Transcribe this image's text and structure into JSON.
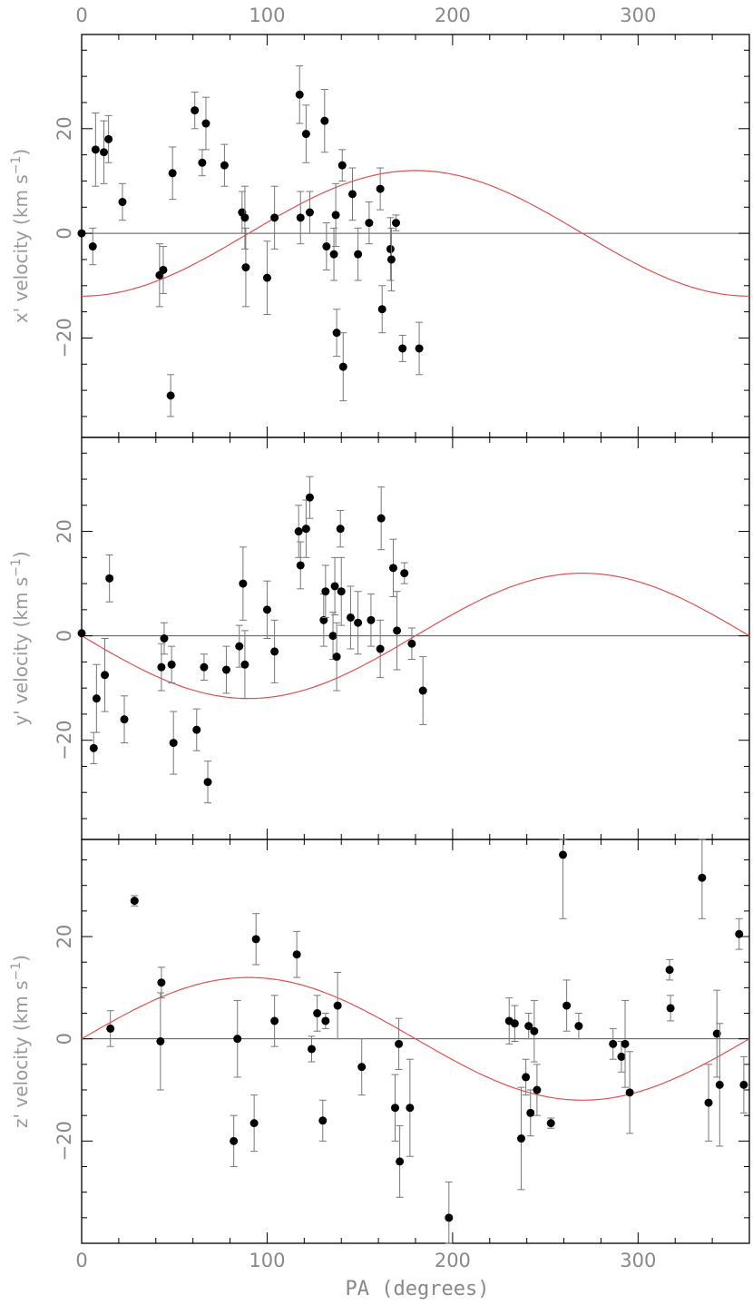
{
  "chart_data": {
    "type": "scatter",
    "xlabel": "PA (degrees)",
    "xlim": [
      0,
      360
    ],
    "x_ticks": [
      0,
      100,
      200,
      300
    ],
    "x_tick_labels": [
      "0",
      "100",
      "200",
      "300"
    ],
    "colors": {
      "model": "#e05050",
      "points": "#000000",
      "errorbars": "#777777",
      "zero_line": "#555555"
    },
    "panels": [
      {
        "id": "x",
        "ylabel_prefix": "x' velocity (km s",
        "ylabel_sup": "−1",
        "ylabel_suffix": ")",
        "ylim": [
          -39,
          38
        ],
        "y_ticks": [
          -20,
          0,
          20
        ],
        "y_tick_labels": [
          "−20",
          "0",
          "20"
        ],
        "model": {
          "amplitude": 12,
          "form": "-cos",
          "description": "v = -12 cos(PA)"
        },
        "points": [
          [
            0,
            0,
            0
          ],
          [
            6,
            -2.5,
            3.5
          ],
          [
            7.5,
            16,
            7
          ],
          [
            12,
            15.5,
            6
          ],
          [
            14.5,
            18,
            4.5
          ],
          [
            22,
            6,
            3.5
          ],
          [
            42,
            -8,
            6
          ],
          [
            44,
            -7,
            4.5
          ],
          [
            48,
            -31,
            4
          ],
          [
            49,
            11.5,
            5
          ],
          [
            61,
            23.5,
            3.5
          ],
          [
            65,
            13.5,
            2.5
          ],
          [
            67,
            21,
            5
          ],
          [
            77,
            13,
            4
          ],
          [
            86.5,
            4,
            4
          ],
          [
            88,
            3,
            6
          ],
          [
            88.5,
            -6.5,
            7.5
          ],
          [
            100,
            -8.5,
            7
          ],
          [
            104,
            3,
            6
          ],
          [
            117.5,
            26.5,
            5.5
          ],
          [
            118,
            3,
            5
          ],
          [
            121,
            19,
            5.5
          ],
          [
            123,
            4,
            4
          ],
          [
            131,
            21.5,
            6
          ],
          [
            132,
            -2.5,
            4.5
          ],
          [
            136,
            -4,
            5
          ],
          [
            137,
            3.5,
            6
          ],
          [
            137.5,
            -19,
            4.5
          ],
          [
            140.5,
            13,
            3
          ],
          [
            141,
            -25.5,
            6.5
          ],
          [
            146,
            7.5,
            5
          ],
          [
            149,
            -4,
            5
          ],
          [
            155,
            2,
            4
          ],
          [
            161,
            8.5,
            4
          ],
          [
            162,
            -14.5,
            4.5
          ],
          [
            166.5,
            -3,
            6
          ],
          [
            167,
            -5,
            6
          ],
          [
            169.5,
            2,
            1.5
          ],
          [
            173,
            -22,
            2.5
          ],
          [
            182,
            -22,
            5
          ]
        ]
      },
      {
        "id": "y",
        "ylabel_prefix": "y' velocity (km s",
        "ylabel_sup": "−1",
        "ylabel_suffix": ")",
        "ylim": [
          -39,
          38
        ],
        "y_ticks": [
          -20,
          0,
          20
        ],
        "y_tick_labels": [
          "−20",
          "0",
          "20"
        ],
        "model": {
          "amplitude": 12,
          "form": "-sin",
          "description": "v = -12 sin(PA)"
        },
        "points": [
          [
            0,
            0.5,
            0
          ],
          [
            6.5,
            -21.5,
            3
          ],
          [
            8,
            -12,
            6.5
          ],
          [
            12.5,
            -7.5,
            7
          ],
          [
            15,
            11,
            4.5
          ],
          [
            23,
            -16,
            4.5
          ],
          [
            43,
            -6,
            4.5
          ],
          [
            44.5,
            -0.5,
            3
          ],
          [
            48.5,
            -5.5,
            3.5
          ],
          [
            49.5,
            -20.5,
            6
          ],
          [
            62,
            -18,
            4
          ],
          [
            66,
            -6,
            2.5
          ],
          [
            68,
            -28,
            4
          ],
          [
            78,
            -6.5,
            4.5
          ],
          [
            85,
            -2,
            4
          ],
          [
            87,
            10,
            7
          ],
          [
            88,
            -5.5,
            6.5
          ],
          [
            100,
            5,
            5.5
          ],
          [
            104,
            -3,
            6
          ],
          [
            117,
            20,
            5
          ],
          [
            118,
            13.5,
            4.5
          ],
          [
            121,
            20.5,
            5.5
          ],
          [
            123,
            26.5,
            4
          ],
          [
            130.5,
            3,
            5
          ],
          [
            131.5,
            8.5,
            5
          ],
          [
            135.5,
            0,
            4.5
          ],
          [
            136.5,
            9.5,
            5.5
          ],
          [
            137.5,
            -4,
            6.5
          ],
          [
            139.5,
            20.5,
            3.5
          ],
          [
            140,
            8.5,
            6.5
          ],
          [
            145,
            3.5,
            6
          ],
          [
            149,
            2.5,
            6
          ],
          [
            156,
            3,
            5
          ],
          [
            161,
            -2.5,
            5.5
          ],
          [
            161.5,
            22.5,
            6
          ],
          [
            168,
            13,
            5.5
          ],
          [
            170,
            1,
            7.5
          ],
          [
            174,
            12,
            2
          ],
          [
            178,
            -1.5,
            3
          ],
          [
            184,
            -10.5,
            6.5
          ]
        ]
      },
      {
        "id": "z",
        "ylabel_prefix": "z' velocity (km s",
        "ylabel_sup": "−1",
        "ylabel_suffix": ")",
        "ylim": [
          -40,
          39
        ],
        "y_ticks": [
          -20,
          0,
          20
        ],
        "y_tick_labels": [
          "−20",
          "0",
          "20"
        ],
        "model": {
          "amplitude": 12,
          "form": "sin",
          "description": "v = 12 sin(PA)"
        },
        "points": [
          [
            15.5,
            2,
            3.5
          ],
          [
            28.5,
            27,
            1
          ],
          [
            42.5,
            -0.5,
            9.5
          ],
          [
            43,
            11,
            3
          ],
          [
            82,
            -20,
            5
          ],
          [
            84,
            0,
            7.5
          ],
          [
            93,
            -16.5,
            5.5
          ],
          [
            94,
            19.5,
            5
          ],
          [
            104,
            3.5,
            5
          ],
          [
            116,
            16.5,
            4.5
          ],
          [
            124,
            -2,
            2.5
          ],
          [
            127,
            5,
            3.5
          ],
          [
            130,
            -16,
            4
          ],
          [
            131.5,
            3.5,
            1.5
          ],
          [
            138,
            6.5,
            6.5
          ],
          [
            151,
            -5.5,
            5.5
          ],
          [
            169,
            -13.5,
            6.5
          ],
          [
            171,
            -1,
            5
          ],
          [
            171.5,
            -24,
            7
          ],
          [
            177,
            -13.5,
            9.5
          ],
          [
            198,
            -35,
            7
          ],
          [
            230.5,
            3.5,
            4.5
          ],
          [
            233.5,
            3,
            3.5
          ],
          [
            237,
            -19.5,
            10
          ],
          [
            239.5,
            -7.5,
            3.5
          ],
          [
            241,
            2.5,
            2.5
          ],
          [
            242,
            -14.5,
            4.5
          ],
          [
            244,
            1.5,
            6
          ],
          [
            245.5,
            -10,
            5
          ],
          [
            253,
            -16.5,
            1
          ],
          [
            259.5,
            36,
            12.5
          ],
          [
            261.5,
            6.5,
            5
          ],
          [
            268,
            2.5,
            2.5
          ],
          [
            286.5,
            -1,
            3
          ],
          [
            291,
            -3.5,
            3
          ],
          [
            293,
            -1,
            8.5
          ],
          [
            295.5,
            -10.5,
            8
          ],
          [
            317,
            13.5,
            2
          ],
          [
            317.5,
            6,
            2.5
          ],
          [
            334.5,
            31.5,
            8
          ],
          [
            338,
            -12.5,
            7.5
          ],
          [
            342.5,
            1,
            8.5
          ],
          [
            344,
            -9,
            12
          ],
          [
            354.5,
            20.5,
            3
          ],
          [
            357,
            -9,
            5.5
          ]
        ]
      }
    ]
  }
}
